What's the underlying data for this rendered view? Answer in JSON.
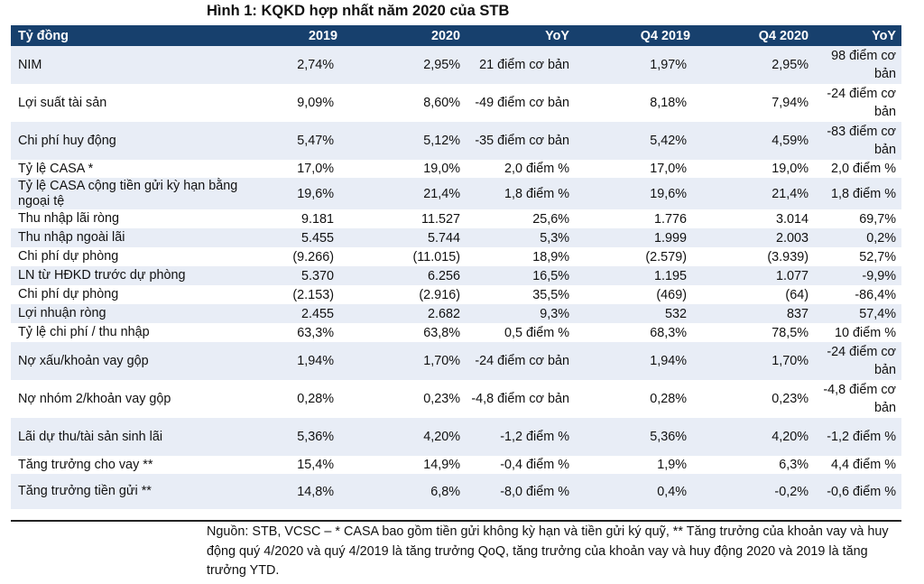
{
  "title": "Hình 1: KQKD hợp nhất năm 2020 của STB",
  "table": {
    "headers": [
      "Tỷ đồng",
      "2019",
      "2020",
      "YoY",
      "Q4 2019",
      "Q4 2020",
      "YoY"
    ],
    "rows": [
      {
        "label": "NIM",
        "v": [
          "2,74%",
          "2,95%",
          "21 điểm cơ bản",
          "1,97%",
          "2,95%",
          "98 điểm cơ bản"
        ]
      },
      {
        "label": "Lợi suất tài sản",
        "v": [
          "9,09%",
          "8,60%",
          "-49 điểm cơ bản",
          "8,18%",
          "7,94%",
          "-24 điểm cơ bản"
        ]
      },
      {
        "label": "Chi phí huy động",
        "v": [
          "5,47%",
          "5,12%",
          "-35 điểm cơ bản",
          "5,42%",
          "4,59%",
          "-83 điểm cơ bản"
        ]
      },
      {
        "label": "Tỷ lệ CASA *",
        "v": [
          "17,0%",
          "19,0%",
          "2,0 điểm %",
          "17,0%",
          "19,0%",
          "2,0 điểm %"
        ]
      },
      {
        "label": "Tỷ lệ CASA cộng tiền gửi kỳ hạn bằng ngoại tệ",
        "v": [
          "19,6%",
          "21,4%",
          "1,8 điểm %",
          "19,6%",
          "21,4%",
          "1,8 điểm %"
        ]
      },
      {
        "label": "Thu nhập lãi ròng",
        "v": [
          "9.181",
          "11.527",
          "25,6%",
          "1.776",
          "3.014",
          "69,7%"
        ]
      },
      {
        "label": "Thu nhập ngoài lãi",
        "v": [
          "5.455",
          "5.744",
          "5,3%",
          "1.999",
          "2.003",
          "0,2%"
        ]
      },
      {
        "label": "Chi phí dự phòng",
        "v": [
          "(9.266)",
          "(11.015)",
          "18,9%",
          "(2.579)",
          "(3.939)",
          "52,7%"
        ]
      },
      {
        "label": "LN từ HĐKD trước dự phòng",
        "v": [
          "5.370",
          "6.256",
          "16,5%",
          "1.195",
          "1.077",
          "-9,9%"
        ]
      },
      {
        "label": "Chi phí dự phòng",
        "v": [
          "(2.153)",
          "(2.916)",
          "35,5%",
          "(469)",
          "(64)",
          "-86,4%"
        ]
      },
      {
        "label": "Lợi nhuận ròng",
        "v": [
          "2.455",
          "2.682",
          "9,3%",
          "532",
          "837",
          "57,4%"
        ]
      },
      {
        "label": "Tỷ lệ chi phí / thu nhập",
        "v": [
          "63,3%",
          "63,8%",
          "0,5 điểm %",
          "68,3%",
          "78,5%",
          "10 điểm %"
        ]
      },
      {
        "label": "Nợ xấu/khoản vay gộp",
        "v": [
          "1,94%",
          "1,70%",
          "-24 điểm cơ bản",
          "1,94%",
          "1,70%",
          "-24 điểm cơ bản"
        ]
      },
      {
        "label": "Nợ nhóm 2/khoản vay gộp",
        "v": [
          "0,28%",
          "0,23%",
          "-4,8 điểm cơ bản",
          "0,28%",
          "0,23%",
          "-4,8 điểm cơ bản"
        ]
      },
      {
        "label": "Lãi dự thu/tài sản sinh lãi",
        "v": [
          "5,36%",
          "4,20%",
          "-1,2 điểm %",
          "5,36%",
          "4,20%",
          "-1,2 điểm %"
        ]
      },
      {
        "label": "Tăng trưởng cho vay **",
        "v": [
          "15,4%",
          "14,9%",
          "-0,4 điểm %",
          "1,9%",
          "6,3%",
          "4,4 điểm %"
        ]
      },
      {
        "label": "Tăng trưởng tiền gửi **",
        "v": [
          "14,8%",
          "6,8%",
          "-8,0 điểm %",
          "0,4%",
          "-0,2%",
          "-0,6 điểm %"
        ]
      }
    ]
  },
  "note": "Nguồn: STB, VCSC – * CASA bao gồm tiền gửi không kỳ hạn và tiền gửi ký quỹ, ** Tăng trưởng của khoản vay và huy động quý 4/2020 và quý 4/2019 là tăng trưởng QoQ, tăng trưởng của khoản vay và huy động 2020 và 2019 là tăng trưởng YTD."
}
